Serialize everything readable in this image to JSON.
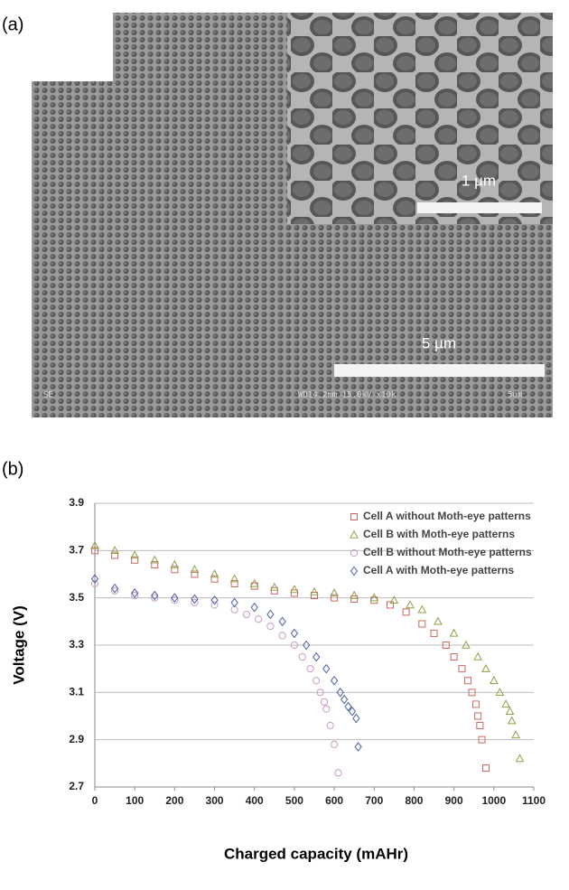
{
  "panel_labels": [
    "(a)",
    "(b)"
  ],
  "micrograph": {
    "inset_scale": "1 µm",
    "main_scale": "5 µm",
    "footer_left": "SE",
    "footer_info": "WD14.2mm 15.0kV x10k",
    "footer_scale": "5um"
  },
  "chart_data": {
    "type": "scatter",
    "x_label": "Charged capacity (mAHr)",
    "y_label": "Voltage (V)",
    "xlim": [
      0,
      1100
    ],
    "ylim": [
      2.7,
      3.9
    ],
    "xticks": [
      0,
      100,
      200,
      300,
      400,
      500,
      600,
      700,
      800,
      900,
      1000,
      1100
    ],
    "yticks": [
      2.7,
      2.9,
      3.1,
      3.3,
      3.5,
      3.7,
      3.9
    ],
    "grid": true,
    "legend": "top-right",
    "series": [
      {
        "name": "Cell A without Moth-eye patterns",
        "color": "#c9675f",
        "marker": "square",
        "x": [
          0,
          50,
          100,
          150,
          200,
          250,
          300,
          350,
          400,
          450,
          500,
          550,
          600,
          650,
          700,
          740,
          780,
          820,
          850,
          880,
          900,
          920,
          935,
          945,
          955,
          960,
          965,
          970,
          980
        ],
        "values": [
          3.7,
          3.68,
          3.66,
          3.64,
          3.62,
          3.6,
          3.58,
          3.56,
          3.55,
          3.53,
          3.52,
          3.51,
          3.5,
          3.495,
          3.49,
          3.47,
          3.44,
          3.39,
          3.35,
          3.3,
          3.25,
          3.2,
          3.15,
          3.1,
          3.05,
          3.0,
          2.96,
          2.9,
          2.78
        ]
      },
      {
        "name": "Cell B with Moth-eye patterns",
        "color": "#8fa14a",
        "marker": "triangle",
        "x": [
          0,
          50,
          100,
          150,
          200,
          250,
          300,
          350,
          400,
          450,
          500,
          550,
          600,
          650,
          700,
          750,
          790,
          820,
          860,
          900,
          930,
          960,
          980,
          1000,
          1015,
          1030,
          1040,
          1045,
          1055,
          1065
        ],
        "values": [
          3.72,
          3.7,
          3.68,
          3.66,
          3.64,
          3.62,
          3.6,
          3.58,
          3.56,
          3.545,
          3.535,
          3.525,
          3.52,
          3.51,
          3.5,
          3.49,
          3.47,
          3.45,
          3.4,
          3.35,
          3.3,
          3.25,
          3.2,
          3.15,
          3.1,
          3.05,
          3.02,
          2.98,
          2.92,
          2.82
        ]
      },
      {
        "name": "Cell B without Moth-eye patterns",
        "color": "#c69ac4",
        "marker": "circle",
        "x": [
          0,
          50,
          100,
          150,
          200,
          250,
          300,
          350,
          380,
          410,
          440,
          470,
          500,
          520,
          540,
          555,
          565,
          575,
          580,
          590,
          600,
          610
        ],
        "values": [
          3.56,
          3.53,
          3.51,
          3.5,
          3.49,
          3.48,
          3.47,
          3.45,
          3.43,
          3.41,
          3.38,
          3.34,
          3.3,
          3.25,
          3.2,
          3.15,
          3.1,
          3.06,
          3.03,
          2.96,
          2.88,
          2.76
        ]
      },
      {
        "name": "Cell A with Moth-eye patterns",
        "color": "#4e5ea8",
        "marker": "diamond",
        "x": [
          0,
          50,
          100,
          150,
          200,
          250,
          300,
          350,
          400,
          440,
          470,
          500,
          530,
          555,
          580,
          600,
          615,
          625,
          635,
          645,
          655,
          660
        ],
        "values": [
          3.58,
          3.54,
          3.52,
          3.51,
          3.5,
          3.495,
          3.49,
          3.48,
          3.46,
          3.43,
          3.4,
          3.35,
          3.3,
          3.25,
          3.2,
          3.15,
          3.1,
          3.07,
          3.04,
          3.02,
          2.99,
          2.87
        ]
      }
    ]
  }
}
